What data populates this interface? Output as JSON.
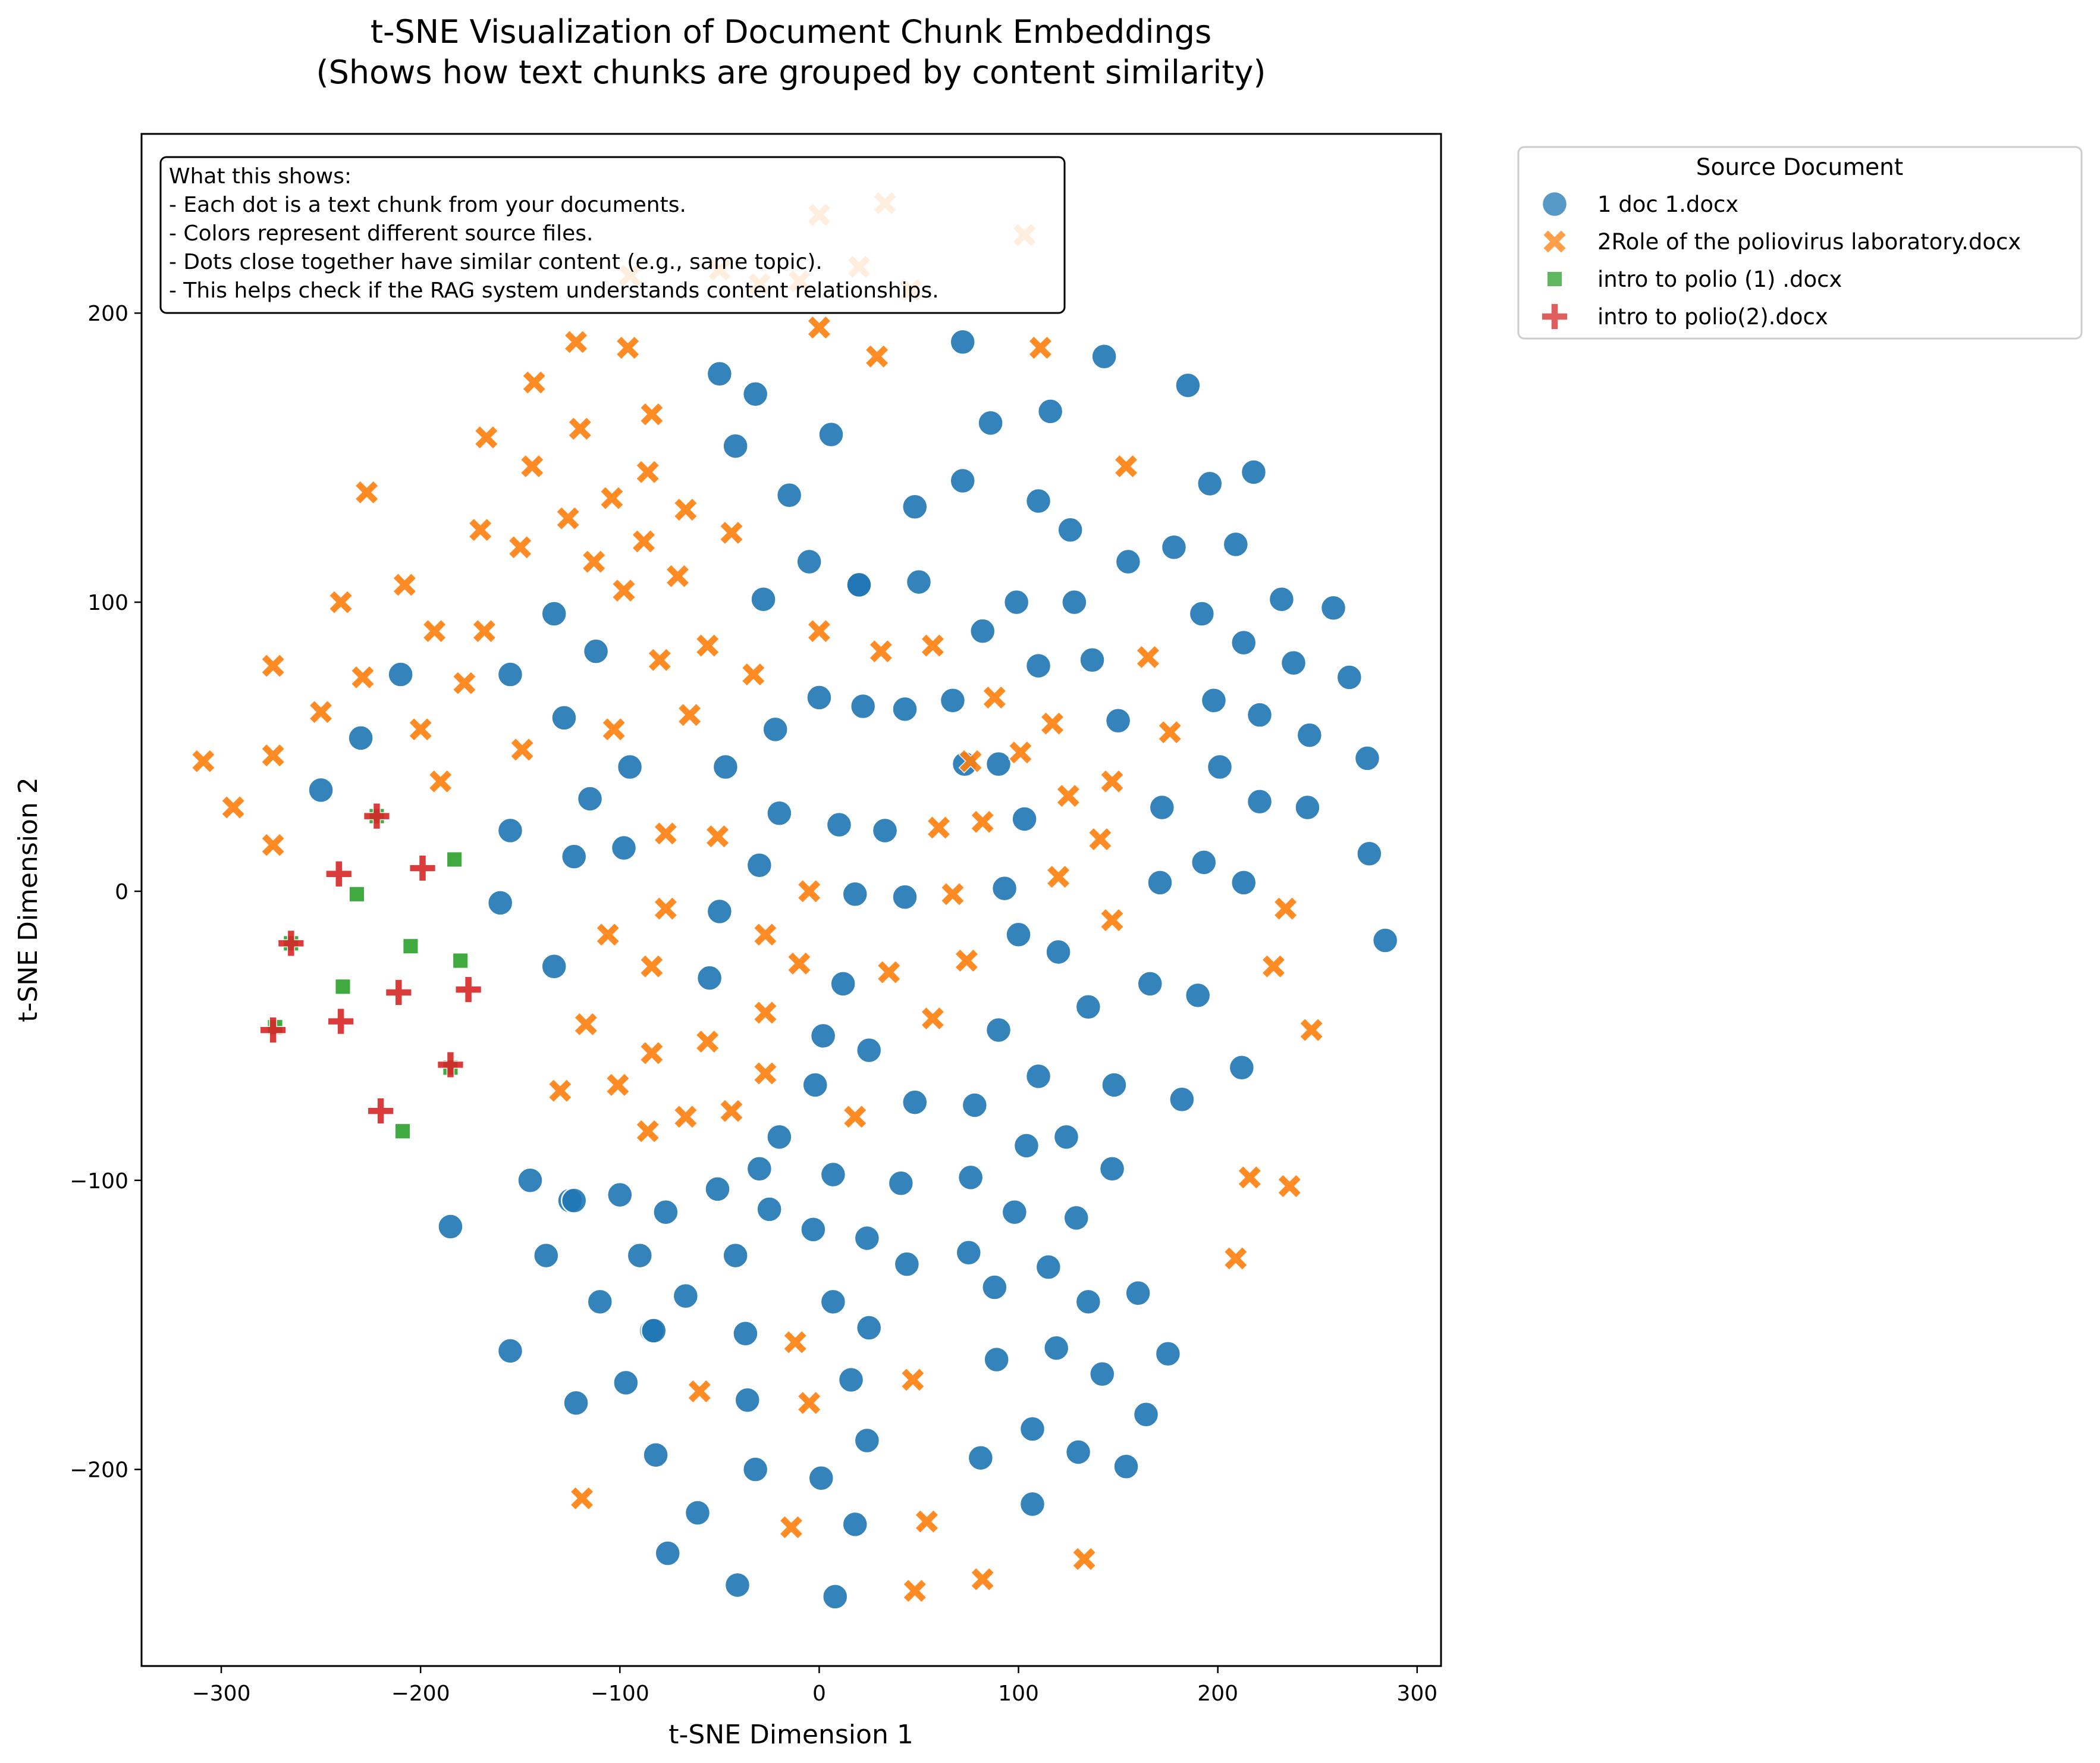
{
  "chart_data": {
    "type": "scatter",
    "title": "t-SNE Visualization of Document Chunk Embeddings",
    "subtitle": "(Shows how text chunks are grouped by content similarity)",
    "xlabel": "t-SNE Dimension 1",
    "ylabel": "t-SNE Dimension 2",
    "xlim": [
      -340,
      312
    ],
    "ylim": [
      -268,
      262
    ],
    "xticks": [
      -300,
      -200,
      -100,
      0,
      100,
      200,
      300
    ],
    "xtick_labels": [
      "−300",
      "−200",
      "−100",
      "0",
      "100",
      "200",
      "300"
    ],
    "yticks": [
      -200,
      -100,
      0,
      100,
      200
    ],
    "ytick_labels": [
      "−200",
      "−100",
      "0",
      "100",
      "200"
    ],
    "grid": false,
    "legend": {
      "title": "Source Document",
      "placement": "outside-top-right"
    },
    "annotation": {
      "lines": [
        "What this shows:",
        "- Each dot is a text chunk from your documents.",
        "- Colors represent different source files.",
        "- Dots close together have similar content (e.g., same topic).",
        "- This helps check if the RAG system understands content relationships."
      ],
      "placement": "top-left"
    },
    "series": [
      {
        "name": "1 doc 1.docx",
        "color": "#1f77b4",
        "marker": "circle",
        "x": [
          -50,
          -32,
          -42,
          6,
          72,
          86,
          116,
          143,
          185,
          -15,
          20,
          48,
          72,
          110,
          126,
          155,
          178,
          196,
          209,
          218,
          -133,
          -112,
          -28,
          -5,
          20,
          50,
          82,
          99,
          128,
          192,
          213,
          232,
          258,
          -210,
          -155,
          -128,
          -230,
          -250,
          -47,
          -22,
          0,
          22,
          43,
          67,
          90,
          110,
          137,
          150,
          198,
          221,
          238,
          246,
          266,
          275,
          -115,
          -155,
          -123,
          -98,
          -20,
          10,
          33,
          73,
          103,
          172,
          201,
          221,
          245,
          -160,
          -30,
          -50,
          18,
          43,
          93,
          171,
          193,
          213,
          276,
          284,
          -133,
          -55,
          12,
          100,
          120,
          135,
          166,
          190,
          -95,
          -125,
          -84,
          2,
          25,
          90,
          212,
          -2,
          48,
          78,
          110,
          148,
          182,
          -20,
          104,
          124,
          -30,
          7,
          -51,
          -145,
          -123,
          -100,
          -77,
          -25,
          41,
          76,
          98,
          129,
          147,
          -185,
          -137,
          -90,
          -42,
          -3,
          24,
          44,
          75,
          88,
          115,
          135,
          160,
          -110,
          -67,
          -83,
          -37,
          7,
          25,
          -155,
          -97,
          -122,
          -36,
          16,
          89,
          119,
          142,
          164,
          175,
          1,
          24,
          -82,
          -61,
          -32,
          18,
          81,
          107,
          130,
          154,
          -76,
          -41,
          107,
          8
        ],
        "y": [
          179,
          172,
          154,
          158,
          190,
          162,
          166,
          185,
          175,
          137,
          106,
          133,
          142,
          135,
          125,
          114,
          119,
          141,
          120,
          145,
          96,
          83,
          101,
          114,
          106,
          107,
          90,
          100,
          100,
          96,
          86,
          101,
          98,
          75,
          75,
          60,
          53,
          35,
          43,
          56,
          67,
          64,
          63,
          66,
          44,
          78,
          80,
          59,
          66,
          61,
          79,
          54,
          74,
          46,
          32,
          21,
          12,
          15,
          27,
          23,
          21,
          44,
          25,
          29,
          43,
          31,
          29,
          -4,
          9,
          -7,
          -1,
          -2,
          1,
          3,
          10,
          3,
          13,
          -17,
          -26,
          -30,
          -32,
          -15,
          -21,
          -40,
          -32,
          -36,
          43,
          -107,
          -152,
          -50,
          -55,
          -48,
          -61,
          -67,
          -73,
          -74,
          -64,
          -67,
          -72,
          -85,
          -88,
          -85,
          -96,
          -98,
          -103,
          -100,
          -107,
          -105,
          -111,
          -110,
          -101,
          -99,
          -111,
          -113,
          -96,
          -116,
          -126,
          -126,
          -126,
          -117,
          -120,
          -129,
          -125,
          -137,
          -130,
          -142,
          -139,
          -142,
          -140,
          -152,
          -153,
          -142,
          -151,
          -159,
          -170,
          -177,
          -176,
          -169,
          -162,
          -158,
          -167,
          -181,
          -160,
          -203,
          -190,
          -195,
          -215,
          -200,
          -219,
          -196,
          -186,
          -194,
          -199,
          -229,
          -240,
          -212,
          -244
        ]
      },
      {
        "name": "2Role of the poliovirus laboratory.docx",
        "color": "#ff7f0e",
        "marker": "x",
        "x": [
          0,
          33,
          103,
          -10,
          20,
          46,
          -30,
          -50,
          -95,
          -122,
          -96,
          0,
          29,
          111,
          -143,
          -84,
          -120,
          -167,
          -144,
          -227,
          -104,
          -86,
          -67,
          -126,
          -170,
          -150,
          -44,
          154,
          -113,
          -88,
          -71,
          -98,
          -240,
          -208,
          -274,
          -229,
          -193,
          -168,
          -80,
          -56,
          -33,
          0,
          31,
          57,
          165,
          -178,
          -200,
          -250,
          -309,
          -274,
          -65,
          -103,
          -149,
          88,
          117,
          176,
          -294,
          -274,
          -190,
          76,
          101,
          125,
          147,
          -77,
          -51,
          60,
          82,
          141,
          -5,
          67,
          120,
          -106,
          -27,
          -77,
          147,
          234,
          -84,
          -10,
          35,
          74,
          228,
          -117,
          -27,
          57,
          247,
          -84,
          -56,
          -27,
          -130,
          -101,
          -67,
          -44,
          -86,
          18,
          216,
          236,
          209,
          -12,
          47,
          -5,
          -60,
          -119,
          -14,
          54,
          133,
          48,
          82
        ],
        "y": [
          234,
          238,
          227,
          211,
          216,
          208,
          210,
          215,
          213,
          190,
          188,
          195,
          185,
          188,
          176,
          165,
          160,
          157,
          147,
          138,
          136,
          145,
          132,
          129,
          125,
          119,
          124,
          147,
          114,
          121,
          109,
          104,
          100,
          106,
          78,
          74,
          90,
          90,
          80,
          85,
          75,
          90,
          83,
          85,
          81,
          72,
          56,
          62,
          45,
          47,
          61,
          56,
          49,
          67,
          58,
          55,
          29,
          16,
          38,
          45,
          48,
          33,
          38,
          20,
          19,
          22,
          24,
          18,
          0,
          -1,
          5,
          -15,
          -15,
          -6,
          -10,
          -6,
          -26,
          -25,
          -28,
          -24,
          -26,
          -46,
          -42,
          -44,
          -48,
          -56,
          -52,
          -63,
          -69,
          -67,
          -78,
          -76,
          -83,
          -78,
          -99,
          -102,
          -127,
          -156,
          -169,
          -177,
          -173,
          -210,
          -220,
          -218,
          -231,
          -242,
          -238
        ]
      },
      {
        "name": "intro to polio (1) .docx",
        "color": "#2ca02c",
        "marker": "square",
        "x": [
          -222,
          -232,
          -183,
          -265,
          -205,
          -180,
          -239,
          -273,
          -185,
          -209
        ],
        "y": [
          26,
          -1,
          11,
          -18,
          -19,
          -24,
          -33,
          -47,
          -61,
          -83
        ]
      },
      {
        "name": "intro to polio(2).docx",
        "color": "#d62728",
        "marker": "plus",
        "x": [
          -222,
          -241,
          -199,
          -265,
          -211,
          -176,
          -240,
          -274,
          -185,
          -220
        ],
        "y": [
          26,
          6,
          8,
          -18,
          -35,
          -34,
          -45,
          -48,
          -60,
          -76
        ]
      }
    ]
  }
}
